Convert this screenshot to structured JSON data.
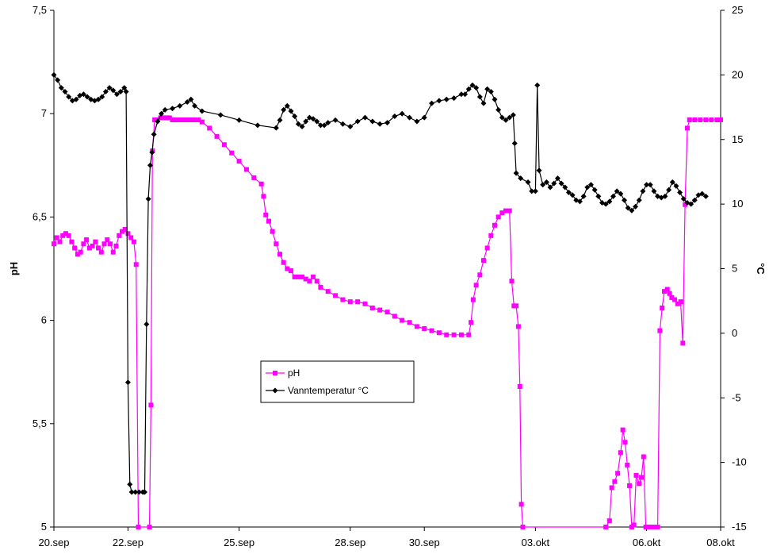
{
  "chart_data": {
    "type": "line",
    "title": "",
    "xlabel": "",
    "ylabel": "pH",
    "y2label": "°C",
    "ylim": [
      5,
      7.5
    ],
    "y2lim": [
      -15,
      25
    ],
    "yticks": [
      "5",
      "5,5",
      "6",
      "6,5",
      "7",
      "7,5"
    ],
    "y2ticks": [
      "-15",
      "-10",
      "-5",
      "0",
      "5",
      "10",
      "15",
      "20",
      "25"
    ],
    "xlim": [
      0,
      18
    ],
    "xticks": [
      {
        "x": 0,
        "label": "20.sep"
      },
      {
        "x": 2,
        "label": "22.sep"
      },
      {
        "x": 5,
        "label": "25.sep"
      },
      {
        "x": 8,
        "label": "28.sep"
      },
      {
        "x": 10,
        "label": "30.sep"
      },
      {
        "x": 13,
        "label": "03.okt"
      },
      {
        "x": 16,
        "label": "06.okt"
      },
      {
        "x": 18,
        "label": "08.okt"
      }
    ],
    "grid": false,
    "legend": "center",
    "series": [
      {
        "name": "pH",
        "axis": "left",
        "color": "#ff00ff",
        "marker": "square",
        "points": [
          [
            0.0,
            6.37
          ],
          [
            0.08,
            6.4
          ],
          [
            0.16,
            6.38
          ],
          [
            0.24,
            6.41
          ],
          [
            0.32,
            6.42
          ],
          [
            0.4,
            6.41
          ],
          [
            0.48,
            6.38
          ],
          [
            0.56,
            6.35
          ],
          [
            0.64,
            6.32
          ],
          [
            0.72,
            6.33
          ],
          [
            0.8,
            6.37
          ],
          [
            0.88,
            6.39
          ],
          [
            0.96,
            6.35
          ],
          [
            1.04,
            6.36
          ],
          [
            1.12,
            6.38
          ],
          [
            1.2,
            6.35
          ],
          [
            1.28,
            6.33
          ],
          [
            1.36,
            6.37
          ],
          [
            1.44,
            6.39
          ],
          [
            1.52,
            6.37
          ],
          [
            1.6,
            6.33
          ],
          [
            1.68,
            6.36
          ],
          [
            1.76,
            6.41
          ],
          [
            1.84,
            6.43
          ],
          [
            1.92,
            6.44
          ],
          [
            2.0,
            6.42
          ],
          [
            2.08,
            6.4
          ],
          [
            2.16,
            6.38
          ],
          [
            2.22,
            6.27
          ],
          [
            2.28,
            5.0
          ],
          [
            2.58,
            5.0
          ],
          [
            2.62,
            5.59
          ],
          [
            2.66,
            6.82
          ],
          [
            2.72,
            6.97
          ],
          [
            2.8,
            6.97
          ],
          [
            2.88,
            6.98
          ],
          [
            2.96,
            6.98
          ],
          [
            3.04,
            6.98
          ],
          [
            3.12,
            6.98
          ],
          [
            3.2,
            6.97
          ],
          [
            3.3,
            6.97
          ],
          [
            3.4,
            6.97
          ],
          [
            3.5,
            6.97
          ],
          [
            3.6,
            6.97
          ],
          [
            3.7,
            6.97
          ],
          [
            3.8,
            6.97
          ],
          [
            3.9,
            6.97
          ],
          [
            4.0,
            6.96
          ],
          [
            4.2,
            6.93
          ],
          [
            4.4,
            6.89
          ],
          [
            4.6,
            6.85
          ],
          [
            4.8,
            6.81
          ],
          [
            5.0,
            6.77
          ],
          [
            5.2,
            6.73
          ],
          [
            5.4,
            6.69
          ],
          [
            5.6,
            6.66
          ],
          [
            5.66,
            6.6
          ],
          [
            5.72,
            6.51
          ],
          [
            5.8,
            6.48
          ],
          [
            5.9,
            6.43
          ],
          [
            6.0,
            6.37
          ],
          [
            6.1,
            6.32
          ],
          [
            6.2,
            6.28
          ],
          [
            6.3,
            6.25
          ],
          [
            6.4,
            6.24
          ],
          [
            6.5,
            6.21
          ],
          [
            6.6,
            6.21
          ],
          [
            6.7,
            6.21
          ],
          [
            6.8,
            6.2
          ],
          [
            6.9,
            6.19
          ],
          [
            7.0,
            6.21
          ],
          [
            7.1,
            6.19
          ],
          [
            7.2,
            6.16
          ],
          [
            7.4,
            6.14
          ],
          [
            7.6,
            6.12
          ],
          [
            7.8,
            6.1
          ],
          [
            8.0,
            6.09
          ],
          [
            8.2,
            6.09
          ],
          [
            8.4,
            6.08
          ],
          [
            8.6,
            6.06
          ],
          [
            8.8,
            6.05
          ],
          [
            9.0,
            6.04
          ],
          [
            9.2,
            6.02
          ],
          [
            9.4,
            6.0
          ],
          [
            9.6,
            5.99
          ],
          [
            9.8,
            5.97
          ],
          [
            10.0,
            5.96
          ],
          [
            10.2,
            5.95
          ],
          [
            10.4,
            5.94
          ],
          [
            10.6,
            5.93
          ],
          [
            10.8,
            5.93
          ],
          [
            11.0,
            5.93
          ],
          [
            11.2,
            5.93
          ],
          [
            11.26,
            5.99
          ],
          [
            11.32,
            6.1
          ],
          [
            11.4,
            6.17
          ],
          [
            11.5,
            6.22
          ],
          [
            11.6,
            6.29
          ],
          [
            11.7,
            6.35
          ],
          [
            11.8,
            6.41
          ],
          [
            11.9,
            6.46
          ],
          [
            12.0,
            6.5
          ],
          [
            12.1,
            6.52
          ],
          [
            12.2,
            6.53
          ],
          [
            12.3,
            6.53
          ],
          [
            12.36,
            6.19
          ],
          [
            12.42,
            6.07
          ],
          [
            12.48,
            6.07
          ],
          [
            12.54,
            5.97
          ],
          [
            12.58,
            5.68
          ],
          [
            12.62,
            5.11
          ],
          [
            12.66,
            5.0
          ],
          [
            14.9,
            5.0
          ],
          [
            15.0,
            5.03
          ],
          [
            15.06,
            5.19
          ],
          [
            15.14,
            5.22
          ],
          [
            15.22,
            5.26
          ],
          [
            15.3,
            5.36
          ],
          [
            15.36,
            5.47
          ],
          [
            15.42,
            5.41
          ],
          [
            15.48,
            5.3
          ],
          [
            15.54,
            5.2
          ],
          [
            15.6,
            5.0
          ],
          [
            15.66,
            5.01
          ],
          [
            15.72,
            5.25
          ],
          [
            15.8,
            5.21
          ],
          [
            15.86,
            5.24
          ],
          [
            15.92,
            5.34
          ],
          [
            15.98,
            5.0
          ],
          [
            16.1,
            5.0
          ],
          [
            16.2,
            5.0
          ],
          [
            16.3,
            5.0
          ],
          [
            16.36,
            5.95
          ],
          [
            16.42,
            6.06
          ],
          [
            16.48,
            6.14
          ],
          [
            16.56,
            6.15
          ],
          [
            16.62,
            6.13
          ],
          [
            16.68,
            6.11
          ],
          [
            16.76,
            6.1
          ],
          [
            16.84,
            6.08
          ],
          [
            16.92,
            6.09
          ],
          [
            16.98,
            5.89
          ],
          [
            17.04,
            6.56
          ],
          [
            17.1,
            6.93
          ],
          [
            17.16,
            6.97
          ],
          [
            17.3,
            6.97
          ],
          [
            17.45,
            6.97
          ],
          [
            17.6,
            6.97
          ],
          [
            17.75,
            6.97
          ],
          [
            17.9,
            6.97
          ],
          [
            18.0,
            6.97
          ]
        ]
      },
      {
        "name": "Vanntemperatur °C",
        "axis": "right",
        "color": "#000000",
        "marker": "diamond",
        "points": [
          [
            0.0,
            20.0
          ],
          [
            0.1,
            19.6
          ],
          [
            0.2,
            19.0
          ],
          [
            0.3,
            18.7
          ],
          [
            0.4,
            18.3
          ],
          [
            0.5,
            18.0
          ],
          [
            0.6,
            18.1
          ],
          [
            0.7,
            18.4
          ],
          [
            0.8,
            18.5
          ],
          [
            0.9,
            18.3
          ],
          [
            1.0,
            18.1
          ],
          [
            1.1,
            18.0
          ],
          [
            1.2,
            18.1
          ],
          [
            1.3,
            18.3
          ],
          [
            1.4,
            18.7
          ],
          [
            1.5,
            19.0
          ],
          [
            1.6,
            18.8
          ],
          [
            1.7,
            18.5
          ],
          [
            1.8,
            18.7
          ],
          [
            1.9,
            19.0
          ],
          [
            1.95,
            18.7
          ],
          [
            2.0,
            -3.8
          ],
          [
            2.05,
            -11.7
          ],
          [
            2.1,
            -12.3
          ],
          [
            2.2,
            -12.3
          ],
          [
            2.3,
            -12.3
          ],
          [
            2.4,
            -12.3
          ],
          [
            2.45,
            -12.3
          ],
          [
            2.5,
            0.7
          ],
          [
            2.55,
            10.4
          ],
          [
            2.6,
            13.0
          ],
          [
            2.65,
            14.0
          ],
          [
            2.7,
            15.4
          ],
          [
            2.8,
            16.4
          ],
          [
            2.9,
            17.0
          ],
          [
            3.0,
            17.3
          ],
          [
            3.2,
            17.4
          ],
          [
            3.4,
            17.6
          ],
          [
            3.6,
            17.9
          ],
          [
            3.7,
            18.1
          ],
          [
            3.8,
            17.6
          ],
          [
            4.0,
            17.2
          ],
          [
            4.5,
            16.9
          ],
          [
            5.0,
            16.5
          ],
          [
            5.5,
            16.1
          ],
          [
            6.0,
            15.9
          ],
          [
            6.1,
            16.5
          ],
          [
            6.2,
            17.3
          ],
          [
            6.3,
            17.6
          ],
          [
            6.4,
            17.2
          ],
          [
            6.5,
            16.8
          ],
          [
            6.6,
            16.2
          ],
          [
            6.7,
            16.0
          ],
          [
            6.8,
            16.4
          ],
          [
            6.9,
            16.7
          ],
          [
            7.0,
            16.6
          ],
          [
            7.1,
            16.4
          ],
          [
            7.2,
            16.1
          ],
          [
            7.3,
            16.1
          ],
          [
            7.4,
            16.3
          ],
          [
            7.6,
            16.5
          ],
          [
            7.8,
            16.2
          ],
          [
            8.0,
            16.0
          ],
          [
            8.2,
            16.4
          ],
          [
            8.4,
            16.7
          ],
          [
            8.6,
            16.4
          ],
          [
            8.8,
            16.2
          ],
          [
            9.0,
            16.3
          ],
          [
            9.2,
            16.8
          ],
          [
            9.4,
            17.0
          ],
          [
            9.6,
            16.7
          ],
          [
            9.8,
            16.4
          ],
          [
            10.0,
            16.7
          ],
          [
            10.2,
            17.8
          ],
          [
            10.4,
            18.0
          ],
          [
            10.6,
            18.1
          ],
          [
            10.8,
            18.2
          ],
          [
            11.0,
            18.5
          ],
          [
            11.1,
            18.5
          ],
          [
            11.2,
            18.9
          ],
          [
            11.3,
            19.2
          ],
          [
            11.4,
            19.0
          ],
          [
            11.5,
            18.3
          ],
          [
            11.6,
            17.8
          ],
          [
            11.7,
            18.9
          ],
          [
            11.8,
            18.7
          ],
          [
            11.9,
            18.1
          ],
          [
            12.0,
            17.3
          ],
          [
            12.1,
            16.7
          ],
          [
            12.2,
            16.5
          ],
          [
            12.3,
            16.7
          ],
          [
            12.4,
            16.9
          ],
          [
            12.44,
            14.7
          ],
          [
            12.48,
            12.4
          ],
          [
            12.6,
            12.0
          ],
          [
            12.8,
            11.7
          ],
          [
            12.9,
            11.0
          ],
          [
            13.0,
            11.0
          ],
          [
            13.05,
            19.2
          ],
          [
            13.1,
            12.6
          ],
          [
            13.2,
            11.5
          ],
          [
            13.3,
            11.7
          ],
          [
            13.4,
            11.3
          ],
          [
            13.5,
            11.6
          ],
          [
            13.6,
            12.0
          ],
          [
            13.7,
            11.6
          ],
          [
            13.8,
            11.3
          ],
          [
            13.9,
            10.9
          ],
          [
            14.0,
            10.7
          ],
          [
            14.1,
            10.3
          ],
          [
            14.2,
            10.2
          ],
          [
            14.3,
            10.6
          ],
          [
            14.4,
            11.3
          ],
          [
            14.5,
            11.5
          ],
          [
            14.6,
            11.1
          ],
          [
            14.7,
            10.6
          ],
          [
            14.8,
            10.1
          ],
          [
            14.9,
            10.0
          ],
          [
            15.0,
            10.2
          ],
          [
            15.1,
            10.6
          ],
          [
            15.2,
            11.0
          ],
          [
            15.3,
            10.8
          ],
          [
            15.4,
            10.3
          ],
          [
            15.5,
            9.7
          ],
          [
            15.6,
            9.5
          ],
          [
            15.7,
            9.8
          ],
          [
            15.8,
            10.3
          ],
          [
            15.9,
            11.0
          ],
          [
            16.0,
            11.5
          ],
          [
            16.1,
            11.5
          ],
          [
            16.2,
            11.0
          ],
          [
            16.3,
            10.6
          ],
          [
            16.4,
            10.5
          ],
          [
            16.5,
            10.6
          ],
          [
            16.6,
            11.1
          ],
          [
            16.7,
            11.7
          ],
          [
            16.8,
            11.4
          ],
          [
            16.9,
            10.9
          ],
          [
            17.0,
            10.4
          ],
          [
            17.1,
            10.1
          ],
          [
            17.2,
            10.0
          ],
          [
            17.3,
            10.3
          ],
          [
            17.4,
            10.7
          ],
          [
            17.5,
            10.8
          ],
          [
            17.6,
            10.6
          ]
        ]
      }
    ]
  }
}
